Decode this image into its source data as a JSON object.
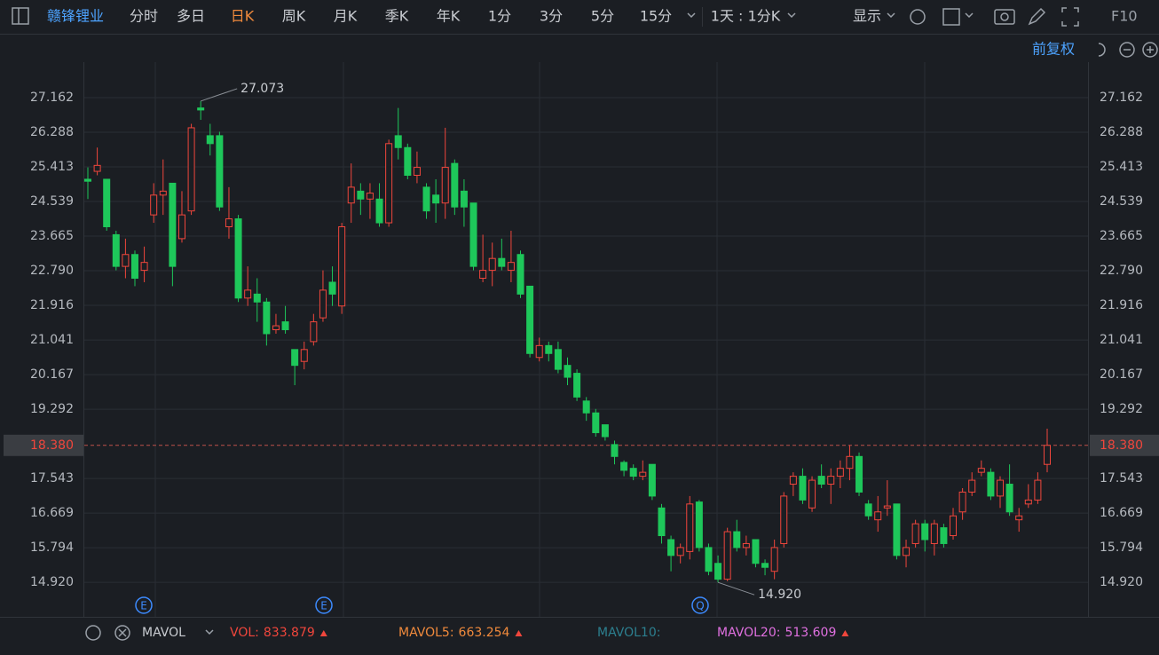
{
  "toolbar": {
    "stock": "赣锋锂业",
    "periods": [
      {
        "label": "分时"
      },
      {
        "label": "多日"
      },
      {
        "label": "日K",
        "active": true
      },
      {
        "label": "周K"
      },
      {
        "label": "月K"
      },
      {
        "label": "季K"
      },
      {
        "label": "年K"
      },
      {
        "label": "1分"
      },
      {
        "label": "3分"
      },
      {
        "label": "5分"
      },
      {
        "label": "15分"
      }
    ],
    "range": "1天 : 1分K",
    "display": "显示",
    "f10": "F10"
  },
  "adjust": "前复权",
  "chart_data": {
    "type": "candlestick",
    "open": [
      25.1,
      25.3,
      25.1,
      23.7,
      22.9,
      23.2,
      22.8,
      24.2,
      24.7,
      25.0,
      23.6,
      24.3,
      26.9,
      26.2,
      26.2,
      23.9,
      24.1,
      22.1,
      22.2,
      22.0,
      21.3,
      21.5,
      20.8,
      20.5,
      21.0,
      21.6,
      22.5,
      21.9,
      24.5,
      24.8,
      24.6,
      24.6,
      24.0,
      26.2,
      25.9,
      25.2,
      24.9,
      24.7,
      24.5,
      25.5,
      24.8,
      24.5,
      22.6,
      22.8,
      23.1,
      22.8,
      23.2,
      22.4,
      20.6,
      20.9,
      20.8,
      20.4,
      20.2,
      19.5,
      19.2,
      18.9,
      18.4,
      17.95,
      17.8,
      17.6,
      17.9,
      16.8,
      16.0,
      15.6,
      15.7,
      16.95,
      15.8,
      15.4,
      15.0,
      16.2,
      15.8,
      16.0,
      15.4,
      15.2,
      15.9,
      17.4,
      17.6,
      16.8,
      17.6,
      17.4,
      17.6,
      17.8,
      18.1,
      16.9,
      16.5,
      16.8,
      16.9,
      15.6,
      15.9,
      16.4,
      15.9,
      16.3,
      16.1,
      16.7,
      17.2,
      17.7,
      17.7,
      17.1,
      17.4,
      16.5,
      16.9,
      17.0,
      17.9
    ],
    "high": [
      25.4,
      25.9,
      25.1,
      23.8,
      23.6,
      23.3,
      23.4,
      25.0,
      25.6,
      25.0,
      24.8,
      26.5,
      27.073,
      26.5,
      26.3,
      24.9,
      24.2,
      22.9,
      22.6,
      22.1,
      21.7,
      21.9,
      20.8,
      21.0,
      21.7,
      22.8,
      22.9,
      24.0,
      25.5,
      25.0,
      25.0,
      25.0,
      26.1,
      26.9,
      26.0,
      25.8,
      25.0,
      25.1,
      26.4,
      25.6,
      25.1,
      24.5,
      23.7,
      23.5,
      23.6,
      23.8,
      23.3,
      22.4,
      21.1,
      21.0,
      21.0,
      20.6,
      20.3,
      19.6,
      19.3,
      18.9,
      18.5,
      18.0,
      17.9,
      18.0,
      17.9,
      16.9,
      16.1,
      15.9,
      17.1,
      17.0,
      15.9,
      15.6,
      16.3,
      16.5,
      16.1,
      16.0,
      15.5,
      16.0,
      17.2,
      17.7,
      17.8,
      17.6,
      17.9,
      17.8,
      18.0,
      18.38,
      18.2,
      17.0,
      17.1,
      17.5,
      16.9,
      16.0,
      16.5,
      16.5,
      16.5,
      16.4,
      16.8,
      17.3,
      17.7,
      18.0,
      17.8,
      17.6,
      17.9,
      16.8,
      17.4,
      17.7,
      18.8
    ],
    "low": [
      24.6,
      25.2,
      23.8,
      22.8,
      22.6,
      22.4,
      22.5,
      24.0,
      24.2,
      22.4,
      23.5,
      24.2,
      26.6,
      25.7,
      24.3,
      23.6,
      22.0,
      21.9,
      21.5,
      20.9,
      21.2,
      21.2,
      19.9,
      20.3,
      20.9,
      21.5,
      21.9,
      21.7,
      24.0,
      24.2,
      24.1,
      23.9,
      23.9,
      25.6,
      25.1,
      25.0,
      24.1,
      24.0,
      24.1,
      24.2,
      23.9,
      22.8,
      22.5,
      22.4,
      22.8,
      22.5,
      22.1,
      20.6,
      20.5,
      20.5,
      20.2,
      19.9,
      19.5,
      19.0,
      18.6,
      18.5,
      17.9,
      17.6,
      17.5,
      17.5,
      17.0,
      15.9,
      15.2,
      15.4,
      15.5,
      15.7,
      15.1,
      14.92,
      14.95,
      15.7,
      15.6,
      15.3,
      15.1,
      15.0,
      15.8,
      17.1,
      16.9,
      16.7,
      17.3,
      16.9,
      17.3,
      17.5,
      17.1,
      16.5,
      16.2,
      16.6,
      15.5,
      15.3,
      15.8,
      15.7,
      15.6,
      15.8,
      16.0,
      16.5,
      17.1,
      17.6,
      17.0,
      16.8,
      16.6,
      16.2,
      16.8,
      16.9,
      17.7
    ],
    "close": [
      25.05,
      25.45,
      23.9,
      22.9,
      23.2,
      22.6,
      23.0,
      24.7,
      24.8,
      22.9,
      24.2,
      26.4,
      26.85,
      26.0,
      24.4,
      24.1,
      22.1,
      22.3,
      22.0,
      21.2,
      21.4,
      21.3,
      20.4,
      20.8,
      21.5,
      22.3,
      22.2,
      23.9,
      24.9,
      24.6,
      24.75,
      24.0,
      26.0,
      25.9,
      25.2,
      25.4,
      24.3,
      24.5,
      25.4,
      24.4,
      24.4,
      22.9,
      22.8,
      23.1,
      22.9,
      23.0,
      22.2,
      20.7,
      20.9,
      20.7,
      20.3,
      20.1,
      19.6,
      19.2,
      18.7,
      18.6,
      18.1,
      17.75,
      17.6,
      17.7,
      17.1,
      16.1,
      15.6,
      15.8,
      16.9,
      15.8,
      15.2,
      15.0,
      16.2,
      15.8,
      15.9,
      15.4,
      15.3,
      15.8,
      17.1,
      17.6,
      17.0,
      17.5,
      17.4,
      17.6,
      17.8,
      18.1,
      17.2,
      16.6,
      16.7,
      16.85,
      15.6,
      15.8,
      16.4,
      16.0,
      16.4,
      15.9,
      16.6,
      17.2,
      17.5,
      17.8,
      17.1,
      17.5,
      16.7,
      16.6,
      17.0,
      17.5,
      18.38
    ],
    "up_color": "#f0463c",
    "down_color": "#1ec75a",
    "ylim": [
      14.05,
      28.73
    ],
    "yticks": [
      27.162,
      26.288,
      25.413,
      24.539,
      23.665,
      {
        "value": 22.79,
        "label": "22.790"
      },
      21.916,
      21.041,
      20.167,
      19.292,
      17.543,
      16.669,
      15.794,
      {
        "value": 14.92,
        "label": "14.920"
      }
    ],
    "last_price": {
      "value": 18.38,
      "label": "18.380"
    },
    "annotations": [
      {
        "value": 27.073,
        "label": "27.073"
      },
      {
        "value": 14.92,
        "label": "14.920"
      }
    ],
    "events": [
      "E",
      "E",
      "Q"
    ],
    "grid": true
  },
  "indicator": {
    "name": "MAVOL",
    "items": [
      {
        "name": "VOL:",
        "value": 833.879,
        "color": "#f0463c"
      },
      {
        "name": "MAVOL5:",
        "value": 663.254,
        "color": "#f08a3c"
      },
      {
        "name": "MAVOL10:",
        "color": "#2c7f8f"
      },
      {
        "name": "MAVOL20:",
        "value": 513.609,
        "color": "#e070e0"
      }
    ]
  }
}
